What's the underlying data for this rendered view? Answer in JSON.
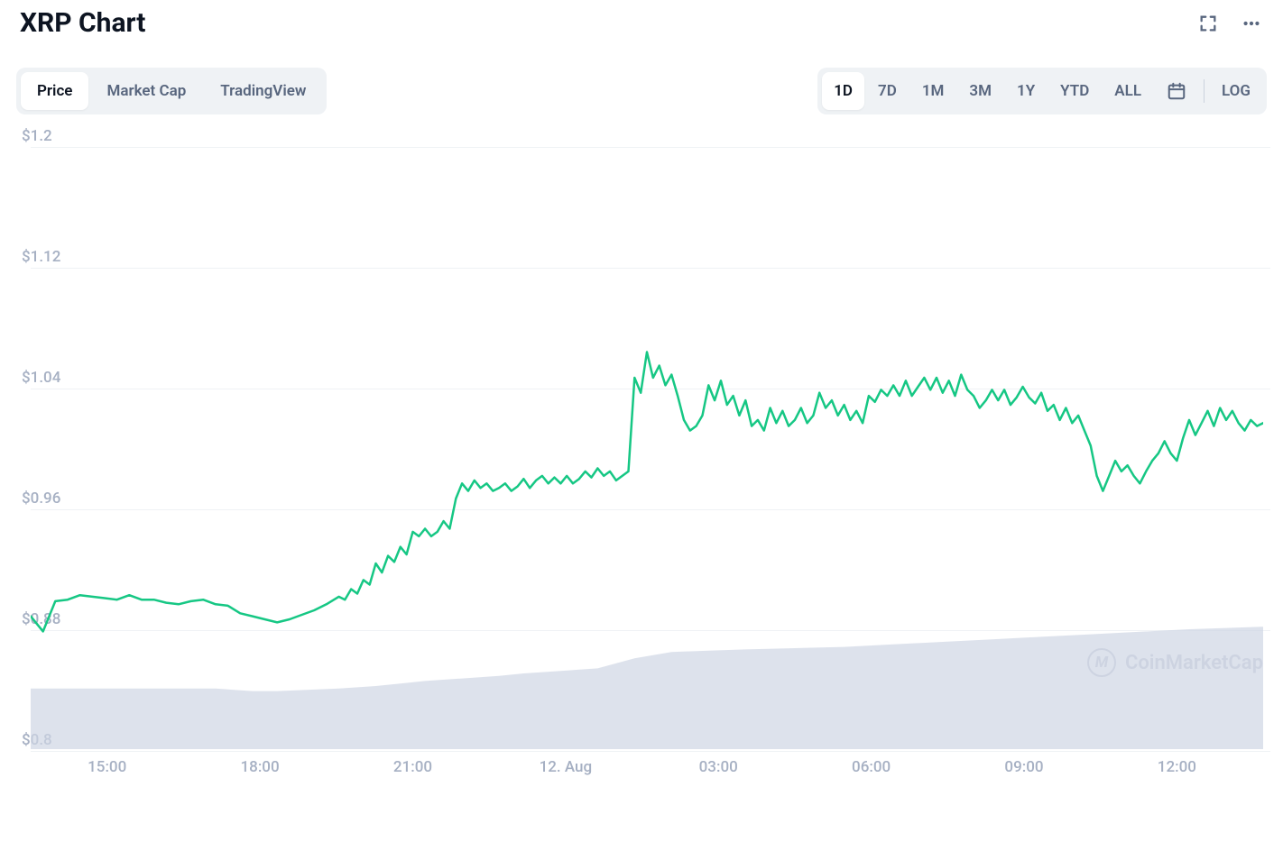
{
  "title": "XRP Chart",
  "tabs_left": [
    {
      "label": "Price",
      "active": true
    },
    {
      "label": "Market Cap",
      "active": false
    },
    {
      "label": "TradingView",
      "active": false
    }
  ],
  "tabs_right": [
    {
      "label": "1D",
      "active": true
    },
    {
      "label": "7D",
      "active": false
    },
    {
      "label": "1M",
      "active": false
    },
    {
      "label": "3M",
      "active": false
    },
    {
      "label": "1Y",
      "active": false
    },
    {
      "label": "YTD",
      "active": false
    },
    {
      "label": "ALL",
      "active": false
    }
  ],
  "log_label": "LOG",
  "watermark": "CoinMarketCap",
  "chart": {
    "type": "line",
    "line_color": "#16c784",
    "line_width": 2.5,
    "background_color": "#ffffff",
    "grid_color": "#eff2f5",
    "axis_label_color": "#a6b0c3",
    "axis_fontsize": 17,
    "ylim": [
      0.8,
      1.2
    ],
    "y_ticks": [
      {
        "value": 1.2,
        "label": "$1.2"
      },
      {
        "value": 1.12,
        "label": "$1.12"
      },
      {
        "value": 1.04,
        "label": "$1.04"
      },
      {
        "value": 0.96,
        "label": "$0.96"
      },
      {
        "value": 0.88,
        "label": "$0.88"
      },
      {
        "value": 0.8,
        "label": "$0.8"
      }
    ],
    "x_ticks": [
      {
        "t": 0.062,
        "label": "15:00"
      },
      {
        "t": 0.186,
        "label": "18:00"
      },
      {
        "t": 0.31,
        "label": "21:00"
      },
      {
        "t": 0.434,
        "label": "12. Aug"
      },
      {
        "t": 0.558,
        "label": "03:00"
      },
      {
        "t": 0.682,
        "label": "06:00"
      },
      {
        "t": 0.806,
        "label": "09:00"
      },
      {
        "t": 0.93,
        "label": "12:00"
      }
    ],
    "price_points": [
      {
        "t": 0.0,
        "v": 0.882
      },
      {
        "t": 0.01,
        "v": 0.872
      },
      {
        "t": 0.02,
        "v": 0.892
      },
      {
        "t": 0.03,
        "v": 0.893
      },
      {
        "t": 0.04,
        "v": 0.896
      },
      {
        "t": 0.05,
        "v": 0.895
      },
      {
        "t": 0.06,
        "v": 0.894
      },
      {
        "t": 0.07,
        "v": 0.893
      },
      {
        "t": 0.08,
        "v": 0.896
      },
      {
        "t": 0.09,
        "v": 0.893
      },
      {
        "t": 0.1,
        "v": 0.893
      },
      {
        "t": 0.11,
        "v": 0.891
      },
      {
        "t": 0.12,
        "v": 0.89
      },
      {
        "t": 0.13,
        "v": 0.892
      },
      {
        "t": 0.14,
        "v": 0.893
      },
      {
        "t": 0.15,
        "v": 0.89
      },
      {
        "t": 0.16,
        "v": 0.889
      },
      {
        "t": 0.17,
        "v": 0.884
      },
      {
        "t": 0.18,
        "v": 0.882
      },
      {
        "t": 0.19,
        "v": 0.88
      },
      {
        "t": 0.2,
        "v": 0.878
      },
      {
        "t": 0.21,
        "v": 0.88
      },
      {
        "t": 0.22,
        "v": 0.883
      },
      {
        "t": 0.23,
        "v": 0.886
      },
      {
        "t": 0.24,
        "v": 0.89
      },
      {
        "t": 0.25,
        "v": 0.895
      },
      {
        "t": 0.255,
        "v": 0.893
      },
      {
        "t": 0.26,
        "v": 0.9
      },
      {
        "t": 0.265,
        "v": 0.897
      },
      {
        "t": 0.27,
        "v": 0.906
      },
      {
        "t": 0.275,
        "v": 0.903
      },
      {
        "t": 0.28,
        "v": 0.917
      },
      {
        "t": 0.285,
        "v": 0.911
      },
      {
        "t": 0.29,
        "v": 0.922
      },
      {
        "t": 0.295,
        "v": 0.918
      },
      {
        "t": 0.3,
        "v": 0.928
      },
      {
        "t": 0.305,
        "v": 0.923
      },
      {
        "t": 0.31,
        "v": 0.938
      },
      {
        "t": 0.315,
        "v": 0.935
      },
      {
        "t": 0.32,
        "v": 0.94
      },
      {
        "t": 0.325,
        "v": 0.935
      },
      {
        "t": 0.33,
        "v": 0.938
      },
      {
        "t": 0.335,
        "v": 0.945
      },
      {
        "t": 0.34,
        "v": 0.94
      },
      {
        "t": 0.345,
        "v": 0.96
      },
      {
        "t": 0.35,
        "v": 0.97
      },
      {
        "t": 0.355,
        "v": 0.965
      },
      {
        "t": 0.36,
        "v": 0.972
      },
      {
        "t": 0.365,
        "v": 0.967
      },
      {
        "t": 0.37,
        "v": 0.97
      },
      {
        "t": 0.375,
        "v": 0.965
      },
      {
        "t": 0.38,
        "v": 0.967
      },
      {
        "t": 0.385,
        "v": 0.97
      },
      {
        "t": 0.39,
        "v": 0.965
      },
      {
        "t": 0.395,
        "v": 0.968
      },
      {
        "t": 0.4,
        "v": 0.973
      },
      {
        "t": 0.405,
        "v": 0.967
      },
      {
        "t": 0.41,
        "v": 0.972
      },
      {
        "t": 0.415,
        "v": 0.975
      },
      {
        "t": 0.42,
        "v": 0.97
      },
      {
        "t": 0.425,
        "v": 0.974
      },
      {
        "t": 0.43,
        "v": 0.97
      },
      {
        "t": 0.435,
        "v": 0.975
      },
      {
        "t": 0.44,
        "v": 0.97
      },
      {
        "t": 0.445,
        "v": 0.973
      },
      {
        "t": 0.45,
        "v": 0.978
      },
      {
        "t": 0.455,
        "v": 0.974
      },
      {
        "t": 0.46,
        "v": 0.98
      },
      {
        "t": 0.465,
        "v": 0.975
      },
      {
        "t": 0.47,
        "v": 0.978
      },
      {
        "t": 0.475,
        "v": 0.972
      },
      {
        "t": 0.48,
        "v": 0.975
      },
      {
        "t": 0.485,
        "v": 0.978
      },
      {
        "t": 0.49,
        "v": 1.04
      },
      {
        "t": 0.495,
        "v": 1.03
      },
      {
        "t": 0.5,
        "v": 1.057
      },
      {
        "t": 0.505,
        "v": 1.04
      },
      {
        "t": 0.51,
        "v": 1.048
      },
      {
        "t": 0.515,
        "v": 1.035
      },
      {
        "t": 0.52,
        "v": 1.042
      },
      {
        "t": 0.525,
        "v": 1.028
      },
      {
        "t": 0.53,
        "v": 1.012
      },
      {
        "t": 0.535,
        "v": 1.005
      },
      {
        "t": 0.54,
        "v": 1.008
      },
      {
        "t": 0.545,
        "v": 1.015
      },
      {
        "t": 0.55,
        "v": 1.035
      },
      {
        "t": 0.555,
        "v": 1.025
      },
      {
        "t": 0.56,
        "v": 1.038
      },
      {
        "t": 0.565,
        "v": 1.022
      },
      {
        "t": 0.57,
        "v": 1.028
      },
      {
        "t": 0.575,
        "v": 1.015
      },
      {
        "t": 0.58,
        "v": 1.025
      },
      {
        "t": 0.585,
        "v": 1.008
      },
      {
        "t": 0.59,
        "v": 1.012
      },
      {
        "t": 0.595,
        "v": 1.005
      },
      {
        "t": 0.6,
        "v": 1.02
      },
      {
        "t": 0.605,
        "v": 1.01
      },
      {
        "t": 0.61,
        "v": 1.018
      },
      {
        "t": 0.615,
        "v": 1.008
      },
      {
        "t": 0.62,
        "v": 1.012
      },
      {
        "t": 0.625,
        "v": 1.02
      },
      {
        "t": 0.63,
        "v": 1.01
      },
      {
        "t": 0.635,
        "v": 1.015
      },
      {
        "t": 0.64,
        "v": 1.03
      },
      {
        "t": 0.645,
        "v": 1.02
      },
      {
        "t": 0.65,
        "v": 1.025
      },
      {
        "t": 0.655,
        "v": 1.015
      },
      {
        "t": 0.66,
        "v": 1.022
      },
      {
        "t": 0.665,
        "v": 1.012
      },
      {
        "t": 0.67,
        "v": 1.018
      },
      {
        "t": 0.675,
        "v": 1.01
      },
      {
        "t": 0.68,
        "v": 1.028
      },
      {
        "t": 0.685,
        "v": 1.024
      },
      {
        "t": 0.69,
        "v": 1.032
      },
      {
        "t": 0.695,
        "v": 1.028
      },
      {
        "t": 0.7,
        "v": 1.035
      },
      {
        "t": 0.705,
        "v": 1.028
      },
      {
        "t": 0.71,
        "v": 1.038
      },
      {
        "t": 0.715,
        "v": 1.028
      },
      {
        "t": 0.72,
        "v": 1.034
      },
      {
        "t": 0.725,
        "v": 1.04
      },
      {
        "t": 0.73,
        "v": 1.032
      },
      {
        "t": 0.735,
        "v": 1.04
      },
      {
        "t": 0.74,
        "v": 1.03
      },
      {
        "t": 0.745,
        "v": 1.038
      },
      {
        "t": 0.75,
        "v": 1.028
      },
      {
        "t": 0.755,
        "v": 1.042
      },
      {
        "t": 0.76,
        "v": 1.032
      },
      {
        "t": 0.765,
        "v": 1.028
      },
      {
        "t": 0.77,
        "v": 1.02
      },
      {
        "t": 0.775,
        "v": 1.025
      },
      {
        "t": 0.78,
        "v": 1.032
      },
      {
        "t": 0.785,
        "v": 1.025
      },
      {
        "t": 0.79,
        "v": 1.032
      },
      {
        "t": 0.795,
        "v": 1.022
      },
      {
        "t": 0.8,
        "v": 1.027
      },
      {
        "t": 0.805,
        "v": 1.034
      },
      {
        "t": 0.81,
        "v": 1.027
      },
      {
        "t": 0.815,
        "v": 1.023
      },
      {
        "t": 0.82,
        "v": 1.03
      },
      {
        "t": 0.825,
        "v": 1.018
      },
      {
        "t": 0.83,
        "v": 1.022
      },
      {
        "t": 0.835,
        "v": 1.012
      },
      {
        "t": 0.84,
        "v": 1.02
      },
      {
        "t": 0.845,
        "v": 1.01
      },
      {
        "t": 0.85,
        "v": 1.015
      },
      {
        "t": 0.855,
        "v": 1.005
      },
      {
        "t": 0.86,
        "v": 0.995
      },
      {
        "t": 0.865,
        "v": 0.975
      },
      {
        "t": 0.87,
        "v": 0.965
      },
      {
        "t": 0.875,
        "v": 0.975
      },
      {
        "t": 0.88,
        "v": 0.985
      },
      {
        "t": 0.885,
        "v": 0.978
      },
      {
        "t": 0.89,
        "v": 0.982
      },
      {
        "t": 0.895,
        "v": 0.975
      },
      {
        "t": 0.9,
        "v": 0.97
      },
      {
        "t": 0.905,
        "v": 0.978
      },
      {
        "t": 0.91,
        "v": 0.985
      },
      {
        "t": 0.915,
        "v": 0.99
      },
      {
        "t": 0.92,
        "v": 0.998
      },
      {
        "t": 0.925,
        "v": 0.99
      },
      {
        "t": 0.93,
        "v": 0.985
      },
      {
        "t": 0.935,
        "v": 1.0
      },
      {
        "t": 0.94,
        "v": 1.012
      },
      {
        "t": 0.945,
        "v": 1.002
      },
      {
        "t": 0.95,
        "v": 1.01
      },
      {
        "t": 0.955,
        "v": 1.018
      },
      {
        "t": 0.96,
        "v": 1.008
      },
      {
        "t": 0.965,
        "v": 1.02
      },
      {
        "t": 0.97,
        "v": 1.012
      },
      {
        "t": 0.975,
        "v": 1.018
      },
      {
        "t": 0.98,
        "v": 1.01
      },
      {
        "t": 0.985,
        "v": 1.005
      },
      {
        "t": 0.99,
        "v": 1.012
      },
      {
        "t": 0.995,
        "v": 1.008
      },
      {
        "t": 1.0,
        "v": 1.01
      }
    ],
    "volume": {
      "fill_color": "#cfd6e4",
      "fill_opacity": 0.7,
      "points": [
        {
          "t": 0.0,
          "h": 0.48
        },
        {
          "t": 0.05,
          "h": 0.48
        },
        {
          "t": 0.1,
          "h": 0.48
        },
        {
          "t": 0.15,
          "h": 0.48
        },
        {
          "t": 0.18,
          "h": 0.46
        },
        {
          "t": 0.2,
          "h": 0.46
        },
        {
          "t": 0.25,
          "h": 0.48
        },
        {
          "t": 0.28,
          "h": 0.5
        },
        {
          "t": 0.3,
          "h": 0.52
        },
        {
          "t": 0.32,
          "h": 0.54
        },
        {
          "t": 0.35,
          "h": 0.56
        },
        {
          "t": 0.38,
          "h": 0.58
        },
        {
          "t": 0.4,
          "h": 0.6
        },
        {
          "t": 0.43,
          "h": 0.62
        },
        {
          "t": 0.46,
          "h": 0.64
        },
        {
          "t": 0.49,
          "h": 0.72
        },
        {
          "t": 0.52,
          "h": 0.77
        },
        {
          "t": 0.55,
          "h": 0.78
        },
        {
          "t": 0.58,
          "h": 0.79
        },
        {
          "t": 0.62,
          "h": 0.8
        },
        {
          "t": 0.66,
          "h": 0.81
        },
        {
          "t": 0.7,
          "h": 0.83
        },
        {
          "t": 0.74,
          "h": 0.85
        },
        {
          "t": 0.78,
          "h": 0.87
        },
        {
          "t": 0.82,
          "h": 0.89
        },
        {
          "t": 0.86,
          "h": 0.91
        },
        {
          "t": 0.9,
          "h": 0.93
        },
        {
          "t": 0.94,
          "h": 0.95
        },
        {
          "t": 0.97,
          "h": 0.96
        },
        {
          "t": 1.0,
          "h": 0.97
        }
      ]
    }
  }
}
